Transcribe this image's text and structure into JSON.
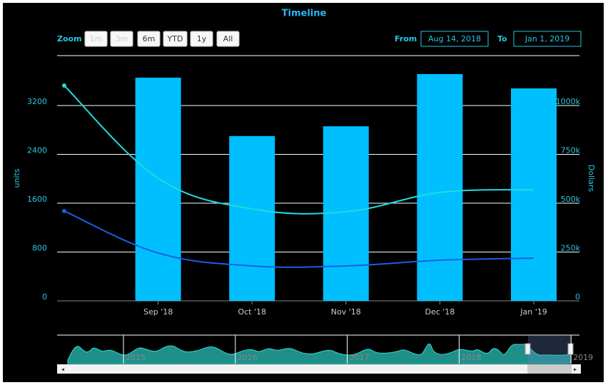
{
  "chart_data": {
    "type": "combo",
    "title": "Timeline",
    "zoom_label": "Zoom",
    "zoom_buttons": [
      "1m",
      "3m",
      "6m",
      "YTD",
      "1y",
      "All"
    ],
    "from_label": "From",
    "from_date": "Aug 14, 2018",
    "to_label": "To",
    "to_date": "Jan 1, 2019",
    "y_label": "units",
    "y2_label": "Dollars",
    "categories": [
      null,
      "Sep '18",
      "Oct '18",
      "Nov '18",
      "Dec '18",
      "Jan '19"
    ],
    "series": [
      {
        "type": "bar",
        "color": "#00bfff",
        "values": [
          null,
          3656,
          2700,
          2860,
          3715,
          3480
        ]
      },
      {
        "type": "line",
        "axis": "y2",
        "color": "#22dada",
        "values": [
          1102000,
          628000,
          471000,
          456000,
          555000,
          569000
        ]
      },
      {
        "type": "line",
        "axis": "y2",
        "color": "#1a5ee6",
        "values": [
          460000,
          245000,
          179000,
          179000,
          208000,
          219000
        ]
      }
    ],
    "ylim": [
      0,
      4000
    ],
    "yticks": [
      0,
      800,
      1600,
      2400,
      3200
    ],
    "y2lim": [
      0,
      1250000
    ],
    "y2ticks": [
      0,
      {
        "value": 250000,
        "label": "250k"
      },
      {
        "value": 500000,
        "label": "500k"
      },
      {
        "value": 750000,
        "label": "750k"
      },
      {
        "value": 1000000,
        "label": "1000k"
      }
    ],
    "grid": true,
    "navigator_years": [
      "2015",
      "2016",
      "2017",
      "2018",
      "2019"
    ]
  }
}
